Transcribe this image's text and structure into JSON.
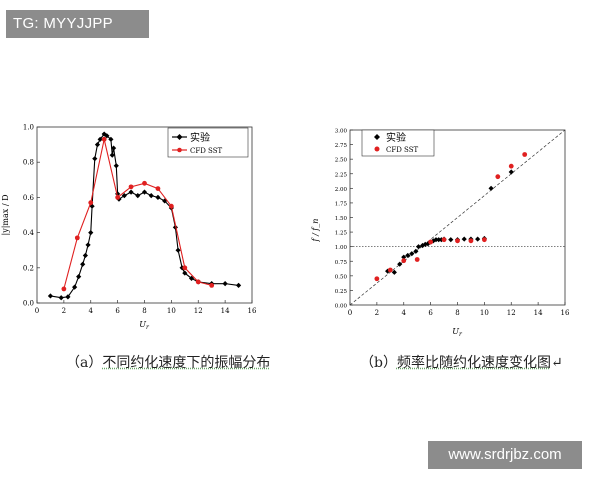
{
  "watermark_tag": "TG: MYYJJPP",
  "watermark_url": "www.srdrjbz.com",
  "captions": {
    "a_prefix": "（a）",
    "a_text": "不同约化速度下的振幅分布",
    "b_prefix": "（b）",
    "b_text": "频率比随约化速度变化图",
    "b_suffix": "↵"
  },
  "colors": {
    "experiment": "#000000",
    "cfd": "#e02020"
  },
  "chart_data": [
    {
      "type": "line",
      "xlabel": "U_r",
      "ylabel": "|y|max / D",
      "xlim": [
        0,
        16
      ],
      "ylim": [
        0,
        1.0
      ],
      "xticks": [
        "0",
        "2",
        "4",
        "6",
        "8",
        "10",
        "12",
        "14",
        "16"
      ],
      "yticks": [
        "0.0",
        "0.2",
        "0.4",
        "0.6",
        "0.8",
        "1.0"
      ],
      "legend_position": "top-right",
      "series": [
        {
          "name": "实验",
          "marker": "diamond",
          "color": "#000000",
          "points": [
            [
              1.0,
              0.04
            ],
            [
              1.8,
              0.03
            ],
            [
              2.3,
              0.035
            ],
            [
              2.8,
              0.09
            ],
            [
              3.1,
              0.15
            ],
            [
              3.4,
              0.22
            ],
            [
              3.6,
              0.27
            ],
            [
              3.8,
              0.33
            ],
            [
              4.0,
              0.4
            ],
            [
              4.1,
              0.55
            ],
            [
              4.3,
              0.82
            ],
            [
              4.5,
              0.9
            ],
            [
              4.7,
              0.93
            ],
            [
              5.0,
              0.96
            ],
            [
              5.2,
              0.95
            ],
            [
              5.5,
              0.93
            ],
            [
              5.6,
              0.84
            ],
            [
              5.7,
              0.88
            ],
            [
              5.9,
              0.78
            ],
            [
              6.0,
              0.62
            ],
            [
              6.1,
              0.59
            ],
            [
              6.5,
              0.61
            ],
            [
              7.0,
              0.63
            ],
            [
              7.5,
              0.61
            ],
            [
              8.0,
              0.63
            ],
            [
              8.5,
              0.61
            ],
            [
              9.0,
              0.6
            ],
            [
              9.5,
              0.58
            ],
            [
              10.0,
              0.54
            ],
            [
              10.3,
              0.43
            ],
            [
              10.5,
              0.3
            ],
            [
              10.8,
              0.2
            ],
            [
              11.0,
              0.17
            ],
            [
              11.5,
              0.14
            ],
            [
              12.0,
              0.12
            ],
            [
              13.0,
              0.11
            ],
            [
              14.0,
              0.11
            ],
            [
              15.0,
              0.1
            ]
          ]
        },
        {
          "name": "CFD SST",
          "marker": "circle",
          "color": "#e02020",
          "points": [
            [
              2.0,
              0.08
            ],
            [
              3.0,
              0.37
            ],
            [
              4.0,
              0.57
            ],
            [
              5.0,
              0.93
            ],
            [
              6.0,
              0.6
            ],
            [
              7.0,
              0.66
            ],
            [
              8.0,
              0.68
            ],
            [
              9.0,
              0.65
            ],
            [
              10.0,
              0.55
            ],
            [
              11.0,
              0.2
            ],
            [
              12.0,
              0.12
            ],
            [
              13.0,
              0.1
            ]
          ]
        }
      ]
    },
    {
      "type": "scatter",
      "xlabel": "U_r",
      "ylabel": "f / f_n",
      "xlim": [
        0,
        16
      ],
      "ylim": [
        0,
        3.0
      ],
      "xticks": [
        "0",
        "2",
        "4",
        "6",
        "8",
        "10",
        "12",
        "14",
        "16"
      ],
      "yticks": [
        "0.00",
        "0.25",
        "0.50",
        "0.75",
        "1.00",
        "1.25",
        "1.50",
        "1.75",
        "2.00",
        "2.25",
        "2.50",
        "2.75",
        "3.00"
      ],
      "legend_position": "top-left",
      "reference_lines": [
        {
          "kind": "dashed",
          "from": [
            0,
            0
          ],
          "to": [
            16,
            3.0
          ]
        },
        {
          "kind": "dotted",
          "y": 1.0
        }
      ],
      "series": [
        {
          "name": "实验",
          "marker": "diamond",
          "color": "#000000",
          "points": [
            [
              2.8,
              0.58
            ],
            [
              3.3,
              0.56
            ],
            [
              3.7,
              0.7
            ],
            [
              4.0,
              0.82
            ],
            [
              4.3,
              0.85
            ],
            [
              4.6,
              0.88
            ],
            [
              4.9,
              0.92
            ],
            [
              5.1,
              1.0
            ],
            [
              5.4,
              1.02
            ],
            [
              5.6,
              1.04
            ],
            [
              5.8,
              1.05
            ],
            [
              6.0,
              1.08
            ],
            [
              6.2,
              1.1
            ],
            [
              6.4,
              1.12
            ],
            [
              6.6,
              1.12
            ],
            [
              6.8,
              1.12
            ],
            [
              7.0,
              1.13
            ],
            [
              7.5,
              1.12
            ],
            [
              8.0,
              1.12
            ],
            [
              8.5,
              1.13
            ],
            [
              9.0,
              1.13
            ],
            [
              9.5,
              1.13
            ],
            [
              10.0,
              1.14
            ],
            [
              10.5,
              2.0
            ],
            [
              12.0,
              2.28
            ]
          ]
        },
        {
          "name": "CFD SST",
          "marker": "circle",
          "color": "#e02020",
          "points": [
            [
              2.0,
              0.45
            ],
            [
              3.0,
              0.6
            ],
            [
              4.0,
              0.76
            ],
            [
              5.0,
              0.78
            ],
            [
              6.0,
              1.08
            ],
            [
              7.0,
              1.12
            ],
            [
              8.0,
              1.1
            ],
            [
              9.0,
              1.1
            ],
            [
              10.0,
              1.12
            ],
            [
              11.0,
              2.2
            ],
            [
              12.0,
              2.38
            ],
            [
              13.0,
              2.58
            ]
          ]
        }
      ]
    }
  ]
}
